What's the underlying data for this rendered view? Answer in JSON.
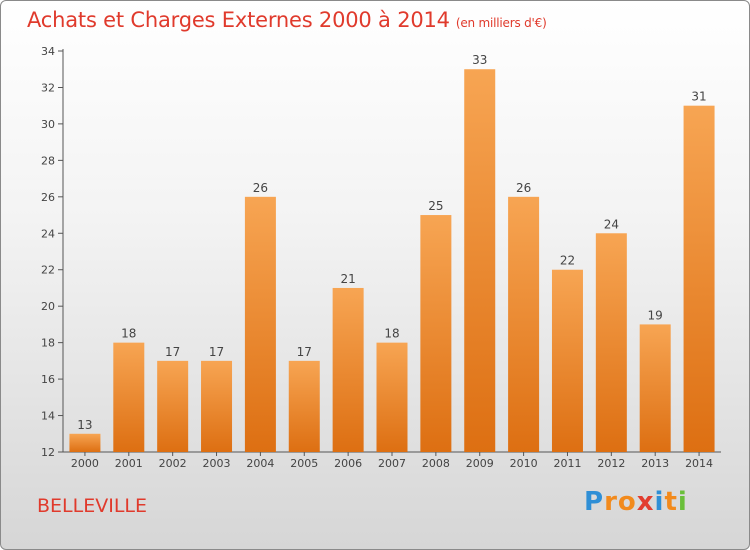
{
  "chart_data": {
    "type": "bar",
    "title": "Achats et Charges Externes 2000 à 2014",
    "subtitle": "(en milliers d'€)",
    "categories": [
      "2000",
      "2001",
      "2002",
      "2003",
      "2004",
      "2005",
      "2006",
      "2007",
      "2008",
      "2009",
      "2010",
      "2011",
      "2012",
      "2013",
      "2014"
    ],
    "values": [
      13,
      18,
      17,
      17,
      26,
      17,
      21,
      18,
      25,
      33,
      26,
      22,
      24,
      19,
      31
    ],
    "ylim": [
      12,
      34
    ],
    "yticks": [
      12,
      14,
      16,
      18,
      20,
      22,
      24,
      26,
      28,
      30,
      32,
      34
    ],
    "grid": false,
    "bar_color": "#f0882c",
    "xlabel": "",
    "ylabel": ""
  },
  "footer": {
    "place": "BELLEVILLE",
    "brand_letters": [
      "P",
      "r",
      "o",
      "x",
      "i",
      "t",
      "i"
    ],
    "brand_colors": [
      "#2f8fd6",
      "#f28a1c",
      "#f28a1c",
      "#e23d2f",
      "#2f8fd6",
      "#f28a1c",
      "#6abf3a"
    ]
  }
}
